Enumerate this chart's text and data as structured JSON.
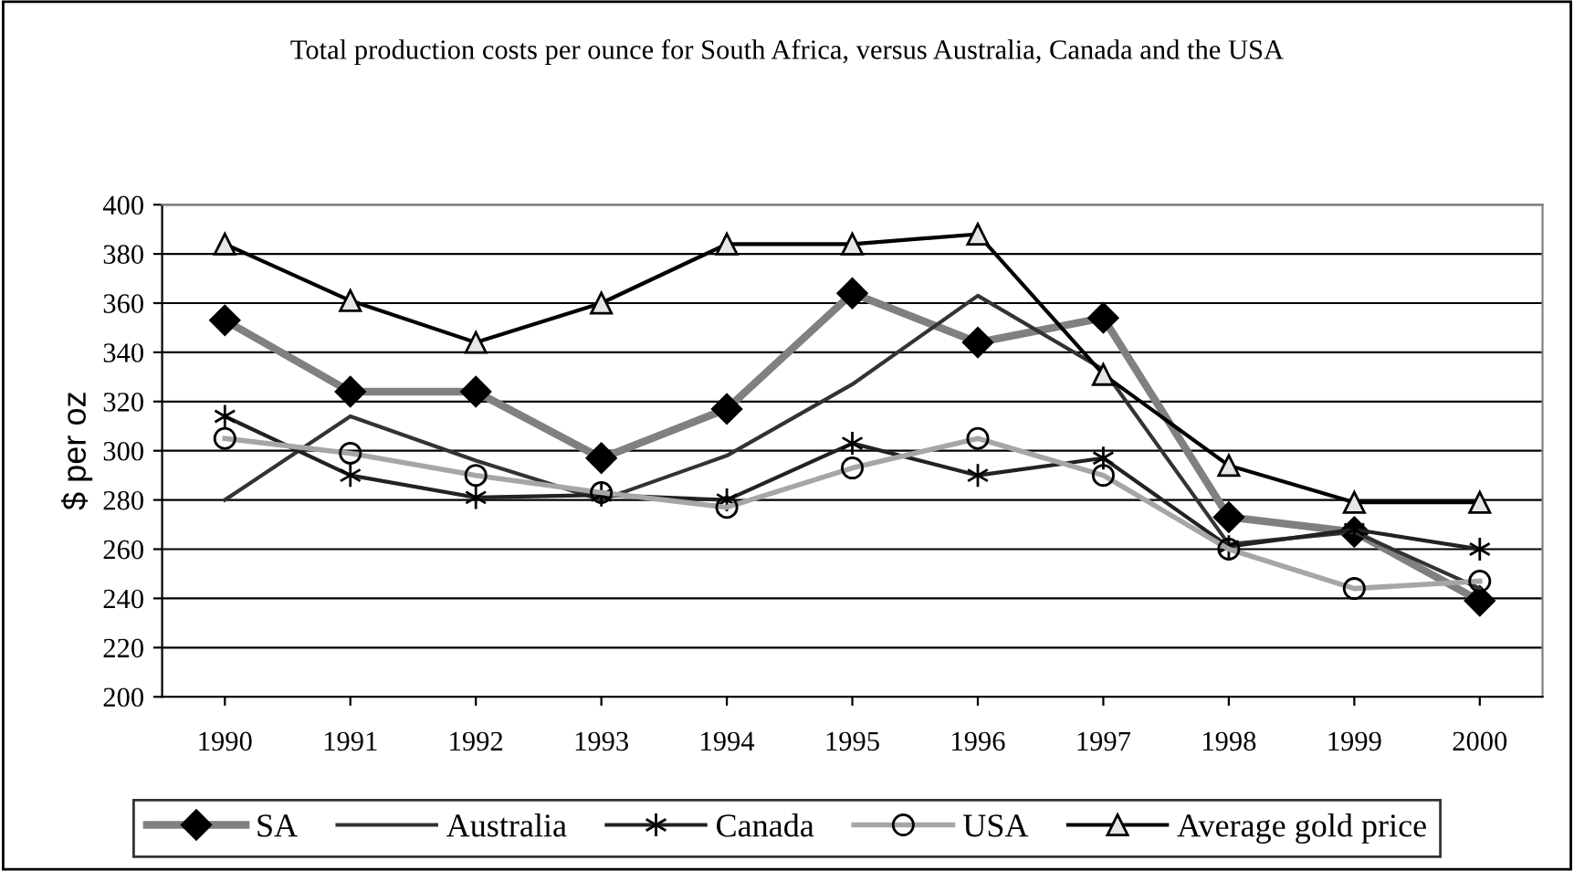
{
  "chart_data": {
    "type": "line",
    "title": "Total production costs per ounce for South Africa, versus Australia, Canada and the USA",
    "ylabel": "$ per oz",
    "categories": [
      "1990",
      "1991",
      "1992",
      "1993",
      "1994",
      "1995",
      "1996",
      "1997",
      "1998",
      "1999",
      "2000"
    ],
    "series": [
      {
        "name": "SA",
        "color": "#808080",
        "marker": "diamond",
        "values": [
          353,
          324,
          324,
          297,
          317,
          364,
          344,
          354,
          273,
          267,
          239
        ]
      },
      {
        "name": "Australia",
        "color": "#333333",
        "marker": "none",
        "values": [
          280,
          314,
          296,
          280,
          298,
          327,
          363,
          333,
          262,
          267,
          244
        ]
      },
      {
        "name": "Canada",
        "color": "#222222",
        "marker": "cross",
        "values": [
          314,
          290,
          281,
          282,
          280,
          303,
          290,
          297,
          261,
          268,
          260
        ]
      },
      {
        "name": "USA",
        "color": "#a6a6a6",
        "marker": "circle",
        "values": [
          305,
          299,
          290,
          283,
          277,
          293,
          305,
          290,
          260,
          244,
          247
        ]
      },
      {
        "name": "Average gold price",
        "color": "#000000",
        "marker": "triangle",
        "values": [
          384,
          361,
          344,
          360,
          384,
          384,
          388,
          331,
          294,
          279,
          279
        ]
      }
    ],
    "ylim": [
      200,
      400
    ],
    "yticks": [
      200,
      220,
      240,
      260,
      280,
      300,
      320,
      340,
      360,
      380,
      400
    ],
    "grid": "y",
    "legend": "bottom"
  }
}
